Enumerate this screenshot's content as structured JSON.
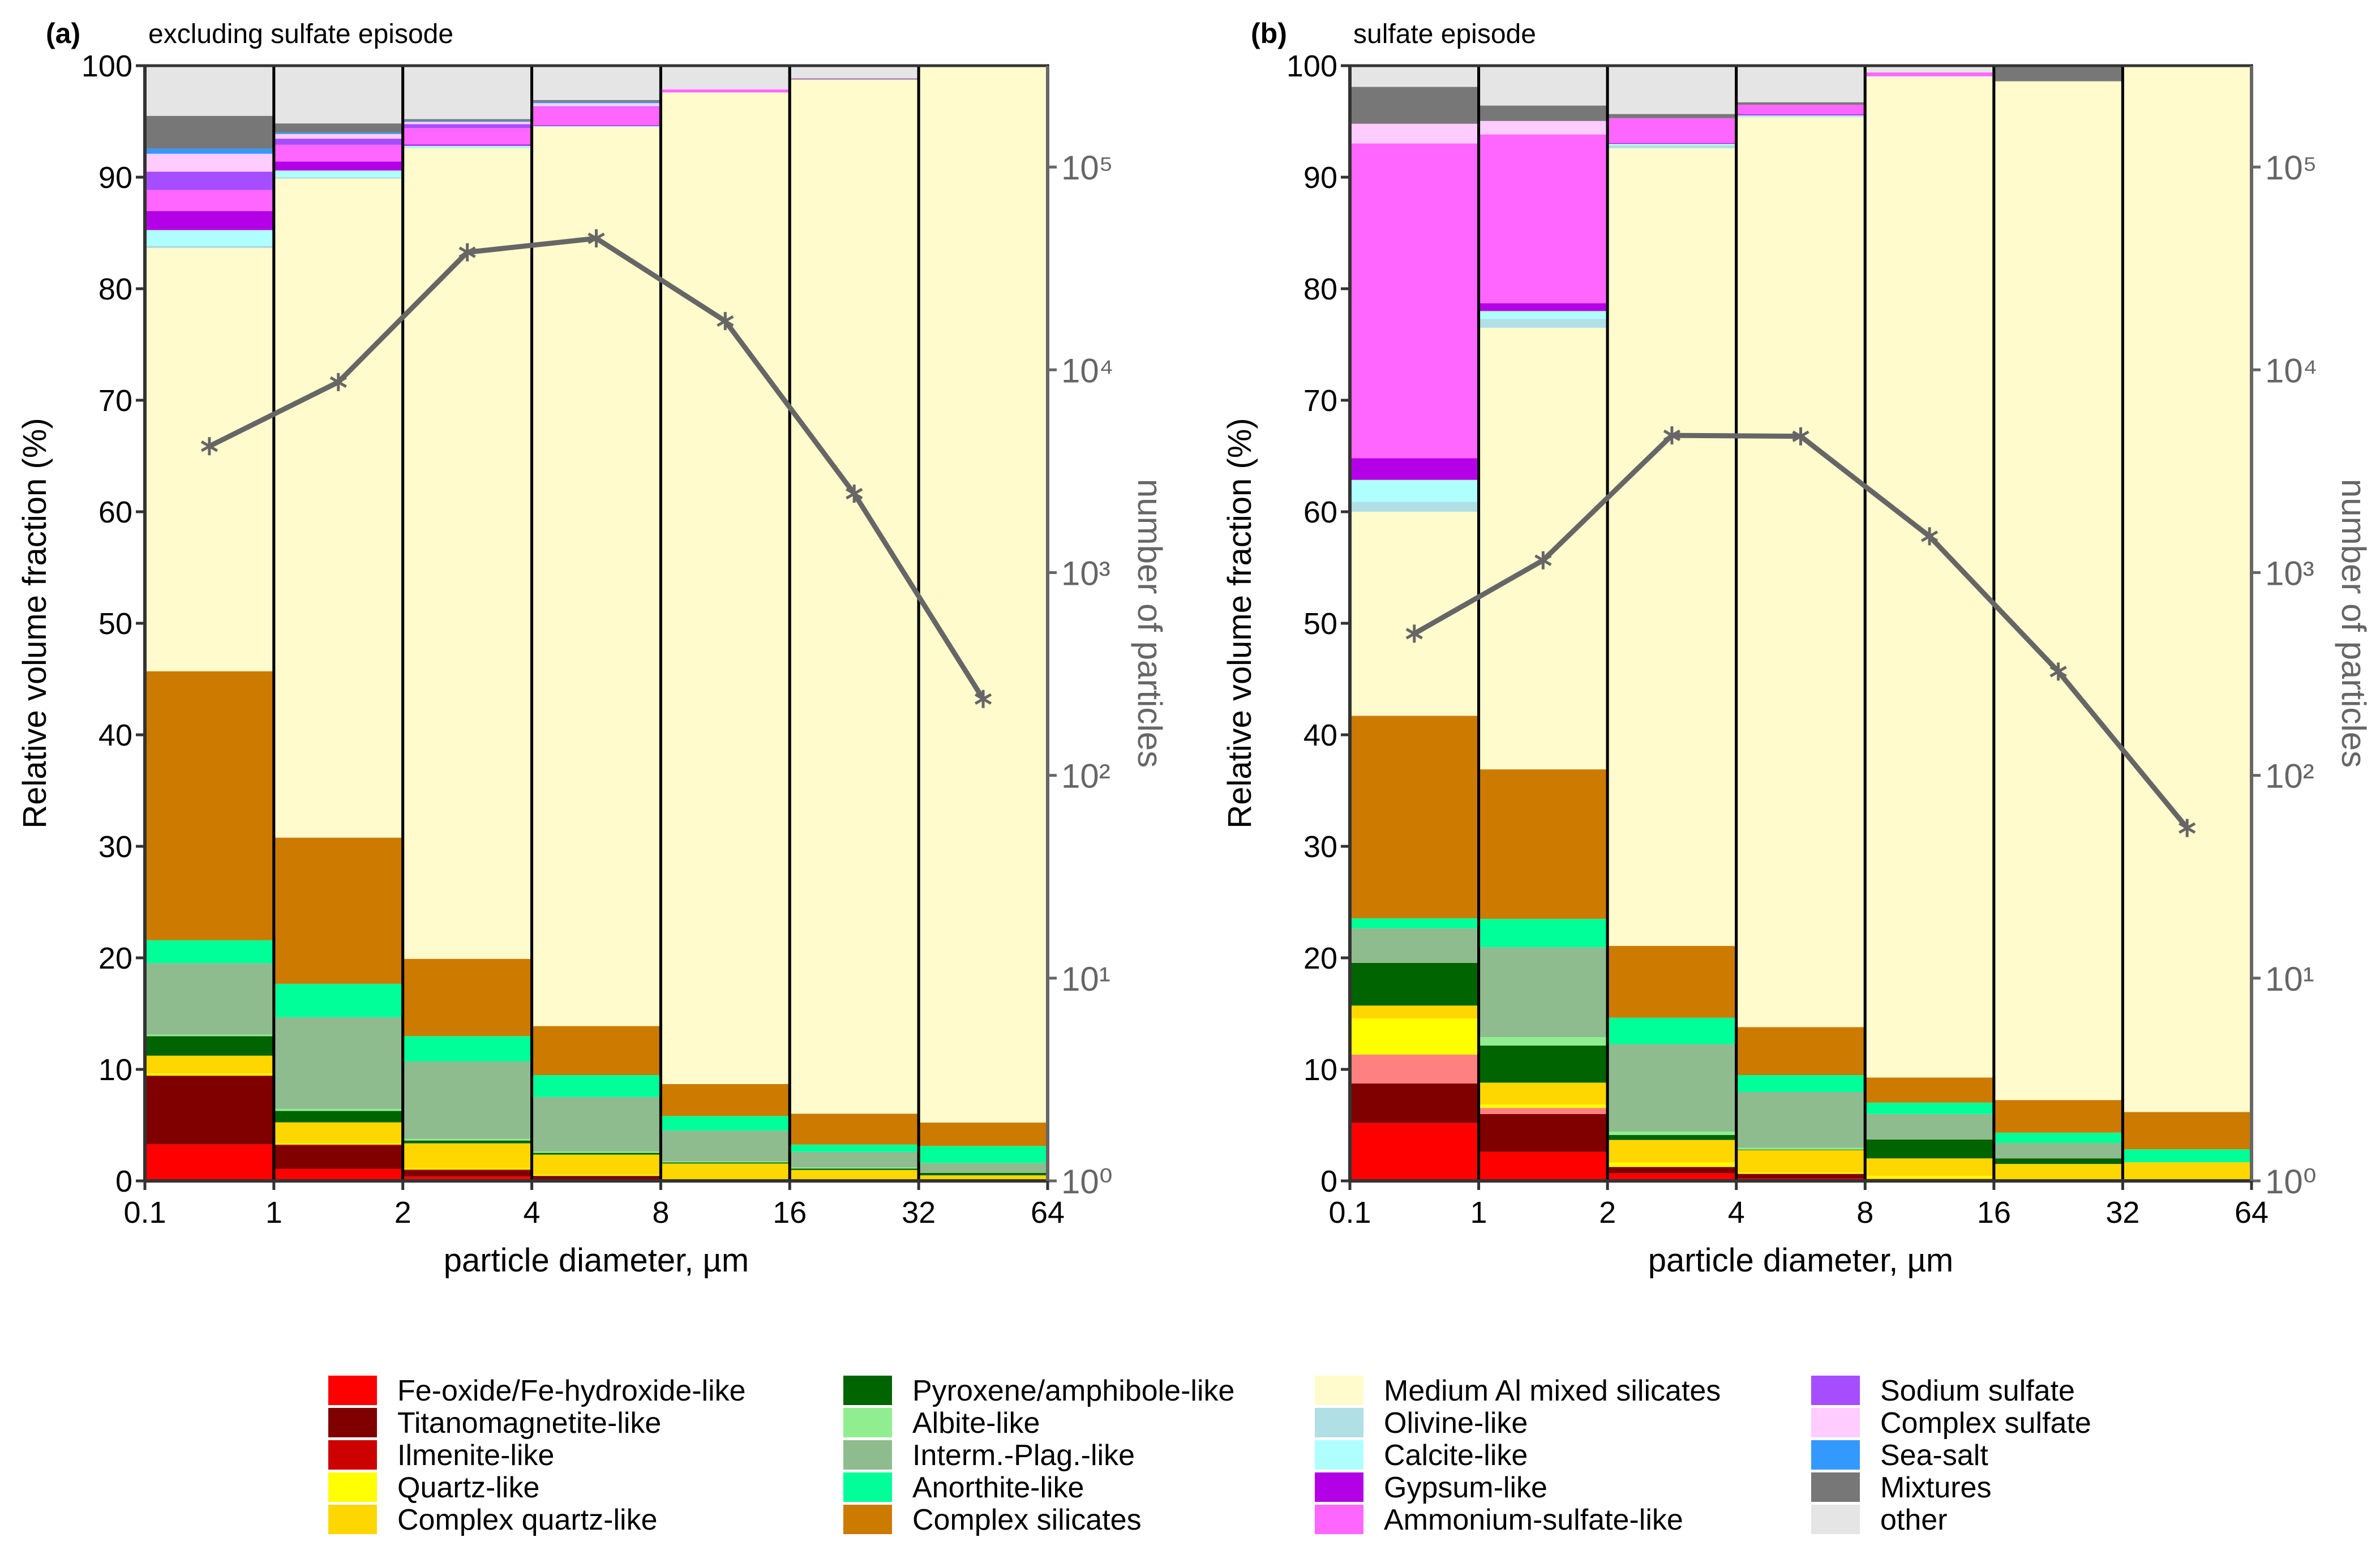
{
  "legend": [
    {
      "name": "Fe-oxide/Fe-hydroxide-like",
      "color": "#FF0000"
    },
    {
      "name": "Titanomagnetite-like",
      "color": "#800000"
    },
    {
      "name": "Ilmenite-like",
      "color": "#CC0000"
    },
    {
      "name": "Quartz-like",
      "color": "#FFFF00"
    },
    {
      "name": "Complex quartz-like",
      "color": "#FFD700"
    },
    {
      "name": "Pyroxene/amphibole-like",
      "color": "#006400"
    },
    {
      "name": "Albite-like",
      "color": "#90EE90"
    },
    {
      "name": "Interm.-Plag.-like",
      "color": "#8FBC8F"
    },
    {
      "name": "Anorthite-like",
      "color": "#00FF99"
    },
    {
      "name": "Complex silicates",
      "color": "#CC7A00"
    },
    {
      "name": "Medium Al mixed silicates",
      "color": "#FFFBCC"
    },
    {
      "name": "Olivine-like",
      "color": "#B0DFE5"
    },
    {
      "name": "Calcite-like",
      "color": "#B0FFFF"
    },
    {
      "name": "Gypsum-like",
      "color": "#B300E6"
    },
    {
      "name": "Ammonium-sulfate-like",
      "color": "#FF66FF"
    },
    {
      "name": "Sodium sulfate",
      "color": "#A64DFF"
    },
    {
      "name": "Complex sulfate",
      "color": "#FFCCFF"
    },
    {
      "name": "Sea-salt",
      "color": "#3399FF"
    },
    {
      "name": "Mixtures",
      "color": "#777777"
    },
    {
      "name": "other",
      "color": "#E5E5E5"
    }
  ],
  "chart_data": [
    {
      "type": "bar",
      "stacked": true,
      "panel_label": "(a)",
      "title": "excluding sulfate episode",
      "xlabel": "particle diameter, µm",
      "ylabel": "Relative volume fraction (%)",
      "y2label": "number of particles",
      "bin_edges": [
        "0.1",
        "1",
        "2",
        "4",
        "8",
        "16",
        "32",
        "64"
      ],
      "ylim": [
        0,
        100
      ],
      "yticks": [
        "0",
        "10",
        "20",
        "30",
        "40",
        "50",
        "60",
        "70",
        "80",
        "90",
        "100"
      ],
      "y2scale": "log",
      "y2lim": [
        1,
        316228
      ],
      "y2ticks": [
        "10⁰",
        "10¹",
        "10²",
        "10³",
        "10⁴",
        "10⁵"
      ],
      "series": [
        {
          "name": "Fe-oxide/Fe-hydroxide-like",
          "color": "#FF0000",
          "values": [
            3.28,
            1.07,
            0.39,
            0.14,
            0,
            0,
            0
          ]
        },
        {
          "name": "Titanomagnetite-like",
          "color": "#800000",
          "values": [
            6.12,
            2.12,
            0.56,
            0.31,
            0,
            0,
            0
          ]
        },
        {
          "name": "Ilmenite-like",
          "color": "#CC0000",
          "values": [
            0.05,
            0.07,
            0.07,
            0,
            0,
            0,
            0
          ]
        },
        {
          "color": "#FF8080",
          "values": [
            0,
            0,
            0,
            0,
            0,
            0,
            0
          ]
        },
        {
          "name": "Quartz-like",
          "color": "#FFFF00",
          "values": [
            0.18,
            0.14,
            0.14,
            0.09,
            0.05,
            0,
            0
          ]
        },
        {
          "name": "Complex quartz-like",
          "color": "#FFD700",
          "values": [
            1.6,
            1.85,
            2.21,
            1.82,
            1.51,
            0.98,
            0.5
          ]
        },
        {
          "name": "Pyroxene/amphibole-like",
          "color": "#006400",
          "values": [
            1.75,
            1.02,
            0.25,
            0.15,
            0.09,
            0.13,
            0.22
          ]
        },
        {
          "name": "Albite-like",
          "color": "#90EE90",
          "values": [
            0.13,
            0.18,
            0.14,
            0.12,
            0.09,
            0.09,
            0
          ]
        },
        {
          "name": "Interm.-Plag.-like",
          "color": "#8FBC8F",
          "values": [
            6.41,
            8.23,
            6.95,
            4.89,
            2.77,
            1.4,
            0.89
          ]
        },
        {
          "name": "Anorthite-like",
          "color": "#00FF99",
          "values": [
            2.06,
            2.99,
            2.27,
            1.97,
            1.31,
            0.66,
            1.52
          ]
        },
        {
          "name": "Complex silicates",
          "color": "#CC7A00",
          "values": [
            24.12,
            13.11,
            6.93,
            4.39,
            2.86,
            2.77,
            2.1
          ]
        },
        {
          "name": "Medium Al mixed silicates",
          "color": "#FFFBCC",
          "values": [
            37.95,
            59.09,
            72.68,
            80.61,
            88.92,
            92.71,
            94.77
          ]
        },
        {
          "name": "Olivine-like",
          "color": "#B0DFE5",
          "values": [
            0.22,
            0.13,
            0.03,
            0,
            0,
            0,
            0
          ]
        },
        {
          "name": "Calcite-like",
          "color": "#B0FFFF",
          "values": [
            1.39,
            0.6,
            0.2,
            0.1,
            0,
            0,
            0
          ]
        },
        {
          "name": "Gypsum-like",
          "color": "#B300E6",
          "values": [
            1.71,
            0.8,
            0.1,
            0.07,
            0,
            0,
            0
          ]
        },
        {
          "name": "Ammonium-sulfate-like",
          "color": "#FF66FF",
          "values": [
            1.89,
            1.5,
            1.48,
            1.64,
            0.26,
            0.05,
            0
          ]
        },
        {
          "name": "Sodium sulfate",
          "color": "#A64DFF",
          "values": [
            1.64,
            0.55,
            0.36,
            0.05,
            0,
            0,
            0
          ]
        },
        {
          "name": "Complex sulfate",
          "color": "#FFCCFF",
          "values": [
            1.6,
            0.42,
            0.2,
            0.29,
            0.12,
            0,
            0
          ]
        },
        {
          "name": "Sea-salt",
          "color": "#3399FF",
          "values": [
            0.45,
            0.13,
            0.08,
            0.12,
            0,
            0,
            0
          ]
        },
        {
          "name": "Mixtures",
          "color": "#777777",
          "values": [
            2.95,
            0.82,
            0.17,
            0.16,
            0,
            0.07,
            0
          ]
        },
        {
          "name": "other",
          "color": "#E5E5E5",
          "values": [
            4.5,
            5.18,
            4.79,
            3.08,
            2.02,
            1.14,
            0
          ]
        }
      ],
      "particle_counts": {
        "color": "#666666",
        "marker": "asterisk",
        "values": [
          4200,
          8700,
          38000,
          44500,
          17400,
          2450,
          238
        ]
      }
    },
    {
      "type": "bar",
      "stacked": true,
      "panel_label": "(b)",
      "title": "sulfate episode",
      "xlabel": "particle diameter, µm",
      "ylabel": "Relative volume fraction (%)",
      "y2label": "number of particles",
      "bin_edges": [
        "0.1",
        "1",
        "2",
        "4",
        "8",
        "16",
        "32",
        "64"
      ],
      "ylim": [
        0,
        100
      ],
      "yticks": [
        "0",
        "10",
        "20",
        "30",
        "40",
        "50",
        "60",
        "70",
        "80",
        "90",
        "100"
      ],
      "y2scale": "log",
      "y2lim": [
        1,
        316228
      ],
      "y2ticks": [
        "10⁰",
        "10¹",
        "10²",
        "10³",
        "10⁴",
        "10⁵"
      ],
      "series": [
        {
          "name": "Fe-oxide/Fe-hydroxide-like",
          "color": "#FF0000",
          "values": [
            5.19,
            2.6,
            0.68,
            0.21,
            0.18,
            0,
            0
          ]
        },
        {
          "name": "Titanomagnetite-like",
          "color": "#800000",
          "values": [
            3.55,
            3.4,
            0.57,
            0.42,
            0,
            0,
            0
          ]
        },
        {
          "name": "Ilmenite-like",
          "color": "#CC0000",
          "values": [
            0,
            0,
            0,
            0,
            0,
            0,
            0
          ]
        },
        {
          "color": "#FF8080",
          "values": [
            2.58,
            0.54,
            0,
            0,
            0,
            0,
            0
          ]
        },
        {
          "name": "Quartz-like",
          "color": "#FFFF00",
          "values": [
            3.24,
            0.3,
            0.4,
            0.12,
            0.27,
            0,
            0
          ]
        },
        {
          "name": "Complex quartz-like",
          "color": "#FFD700",
          "values": [
            1.16,
            1.97,
            2.02,
            2.01,
            1.57,
            1.52,
            1.67
          ]
        },
        {
          "name": "Pyroxene/amphibole-like",
          "color": "#006400",
          "values": [
            3.83,
            3.33,
            0.45,
            0.05,
            1.69,
            0.5,
            0
          ]
        },
        {
          "name": "Albite-like",
          "color": "#90EE90",
          "values": [
            0,
            0.75,
            0.3,
            0.16,
            0,
            0,
            0
          ]
        },
        {
          "name": "Interm.-Plag.-like",
          "color": "#8FBC8F",
          "values": [
            3.1,
            8.06,
            7.84,
            5.0,
            2.29,
            1.38,
            0
          ]
        },
        {
          "name": "Anorthite-like",
          "color": "#00FF99",
          "values": [
            0.9,
            2.54,
            2.37,
            1.52,
            1.02,
            0.93,
            1.16
          ]
        },
        {
          "name": "Complex silicates",
          "color": "#CC7A00",
          "values": [
            18.15,
            13.41,
            6.44,
            4.3,
            2.25,
            2.92,
            3.35
          ]
        },
        {
          "name": "Medium Al mixed silicates",
          "color": "#FFFBCC",
          "values": [
            18.3,
            39.6,
            71.53,
            81.59,
            89.73,
            91.35,
            93.82
          ]
        },
        {
          "name": "Olivine-like",
          "color": "#B0DFE5",
          "values": [
            0.9,
            0.8,
            0.26,
            0.07,
            0,
            0,
            0
          ]
        },
        {
          "name": "Calcite-like",
          "color": "#B0FFFF",
          "values": [
            1.96,
            0.7,
            0.13,
            0.1,
            0.05,
            0,
            0
          ]
        },
        {
          "name": "Gypsum-like",
          "color": "#B300E6",
          "values": [
            1.94,
            0.7,
            0.07,
            0.08,
            0,
            0,
            0
          ]
        },
        {
          "name": "Ammonium-sulfate-like",
          "color": "#FF66FF",
          "values": [
            28.23,
            15.13,
            2.24,
            0.87,
            0.34,
            0,
            0
          ]
        },
        {
          "name": "Sodium sulfate",
          "color": "#A64DFF",
          "values": [
            0,
            0,
            0,
            0,
            0,
            0,
            0
          ]
        },
        {
          "name": "Complex sulfate",
          "color": "#FFCCFF",
          "values": [
            1.76,
            1.21,
            0,
            0,
            0,
            0,
            0
          ]
        },
        {
          "name": "Sea-salt",
          "color": "#3399FF",
          "values": [
            0,
            0,
            0,
            0,
            0,
            0,
            0
          ]
        },
        {
          "name": "Mixtures",
          "color": "#777777",
          "values": [
            3.31,
            1.38,
            0.36,
            0.22,
            0,
            1.4,
            0
          ]
        },
        {
          "name": "other",
          "color": "#E5E5E5",
          "values": [
            1.9,
            3.58,
            4.34,
            3.28,
            0.61,
            0,
            0
          ]
        }
      ],
      "particle_counts": {
        "color": "#666666",
        "marker": "asterisk",
        "values": [
          500,
          1150,
          4750,
          4700,
          1510,
          325,
          55
        ]
      }
    }
  ]
}
